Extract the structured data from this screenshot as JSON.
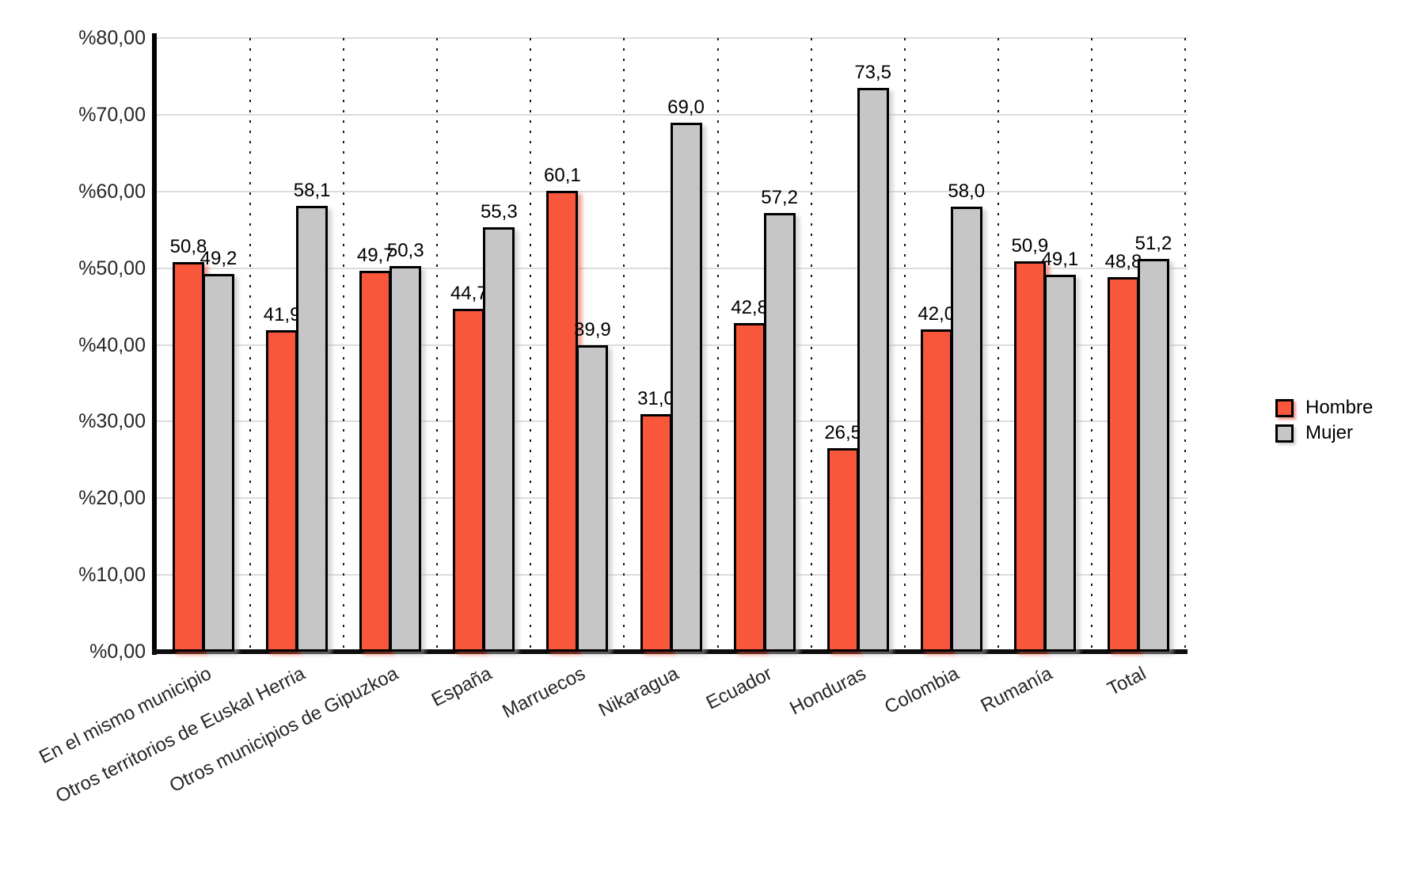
{
  "chart_data": {
    "type": "bar",
    "categories": [
      "En el mismo municipio",
      "Otros territorios de Euskal Herria",
      "Otros municipios de Gipuzkoa",
      "España",
      "Marruecos",
      "Nikaragua",
      "Ecuador",
      "Honduras",
      "Colombia",
      "Rumanía",
      "Total"
    ],
    "series": [
      {
        "name": "Hombre",
        "color": "#F9573B",
        "values": [
          50.8,
          41.9,
          49.7,
          44.7,
          60.1,
          31.0,
          42.8,
          26.5,
          42.0,
          50.9,
          48.8
        ]
      },
      {
        "name": "Mujer",
        "color": "#C6C6C6",
        "values": [
          49.2,
          58.1,
          50.3,
          55.3,
          39.9,
          69.0,
          57.2,
          73.5,
          58.0,
          49.1,
          51.2
        ]
      }
    ],
    "title": "",
    "xlabel": "",
    "ylabel": "",
    "ylim": [
      0,
      80
    ],
    "ytick_values": [
      0,
      10,
      20,
      30,
      40,
      50,
      60,
      70,
      80
    ],
    "ytick_labels": [
      "%0,00",
      "%10,00",
      "%20,00",
      "%30,00",
      "%40,00",
      "%50,00",
      "%60,00",
      "%70,00",
      "%80,00"
    ],
    "value_label_format": "decimal-comma-1",
    "grid": "horizontal-solid, vertical-dotted-category-separators",
    "legend_position": "right"
  },
  "colors": {
    "background": "#FFFFFF",
    "bar_border": "#000000",
    "gridline": "#DCDCDC",
    "axis": "#000000"
  }
}
